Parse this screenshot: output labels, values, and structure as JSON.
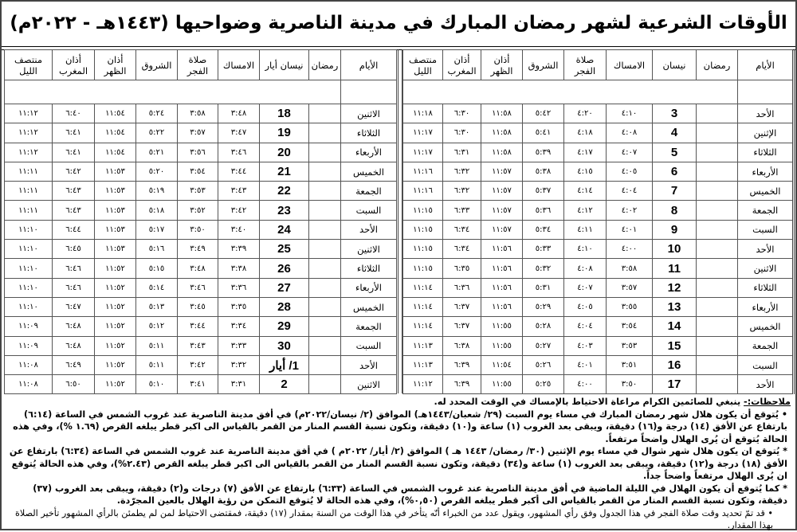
{
  "title": "الأوقات الشرعية لشهر رمضان المبارك في مدينة الناصرية وضواحيها (١٤٤٣هـ - ٢٠٢٢م)",
  "right_table": {
    "headers": [
      "الأيام",
      "رمضان",
      "نيسان",
      "الامساك",
      "صلاة الفجر",
      "الشروق",
      "أذان الظهر",
      "أذان المغرب",
      "منتصف الليل"
    ],
    "rows": [
      [
        "الأحد",
        "",
        "3",
        "٤:١٠",
        "٤:٢٠",
        "٥:٤٢",
        "١١:٥٨",
        "٦:٣٠",
        "١١:١٨"
      ],
      [
        "الإثنين",
        "",
        "4",
        "٤:٠٨",
        "٤:١٨",
        "٥:٤١",
        "١١:٥٨",
        "٦:٣٠",
        "١١:١٧"
      ],
      [
        "الثلاثاء",
        "",
        "5",
        "٤:٠٧",
        "٤:١٧",
        "٥:٣٩",
        "١١:٥٨",
        "٦:٣١",
        "١١:١٧"
      ],
      [
        "الأربعاء",
        "",
        "6",
        "٤:٠٥",
        "٤:١٥",
        "٥:٣٨",
        "١١:٥٧",
        "٦:٣٢",
        "١١:١٦"
      ],
      [
        "الخميس",
        "",
        "7",
        "٤:٠٤",
        "٤:١٤",
        "٥:٣٧",
        "١١:٥٧",
        "٦:٣٢",
        "١١:١٦"
      ],
      [
        "الجمعة",
        "",
        "8",
        "٤:٠٢",
        "٤:١٢",
        "٥:٣٦",
        "١١:٥٧",
        "٦:٣٣",
        "١١:١٥"
      ],
      [
        "السبت",
        "",
        "9",
        "٤:٠١",
        "٤:١١",
        "٥:٣٤",
        "١١:٥٧",
        "٦:٣٤",
        "١١:١٥"
      ],
      [
        "الأحد",
        "",
        "10",
        "٤:٠٠",
        "٤:١٠",
        "٥:٣٣",
        "١١:٥٦",
        "٦:٣٤",
        "١١:١٥"
      ],
      [
        "الاثنين",
        "",
        "11",
        "٣:٥٨",
        "٤:٠٨",
        "٥:٣٢",
        "١١:٥٦",
        "٦:٣٥",
        "١١:١٥"
      ],
      [
        "الثلاثاء",
        "",
        "12",
        "٣:٥٧",
        "٤:٠٧",
        "٥:٣١",
        "١١:٥٦",
        "٦:٣٦",
        "١١:١٤"
      ],
      [
        "الأربعاء",
        "",
        "13",
        "٣:٥٥",
        "٤:٠٥",
        "٥:٢٩",
        "١١:٥٦",
        "٦:٣٧",
        "١١:١٤"
      ],
      [
        "الخميس",
        "",
        "14",
        "٣:٥٤",
        "٤:٠٤",
        "٥:٢٨",
        "١١:٥٥",
        "٦:٣٧",
        "١١:١٤"
      ],
      [
        "الجمعة",
        "",
        "15",
        "٣:٥٣",
        "٤:٠٣",
        "٥:٢٧",
        "١١:٥٥",
        "٦:٣٨",
        "١١:١٣"
      ],
      [
        "السبت",
        "",
        "16",
        "٣:٥١",
        "٤:٠١",
        "٥:٢٦",
        "١١:٥٤",
        "٦:٣٩",
        "١١:١٣"
      ],
      [
        "الأحد",
        "",
        "17",
        "٣:٥٠",
        "٤:٠٠",
        "٥:٢٥",
        "١١:٥٥",
        "٦:٣٩",
        "١١:١٢"
      ]
    ]
  },
  "left_table": {
    "headers": [
      "الأيام",
      "رمضان",
      "نيسان أيار",
      "الامساك",
      "صلاة الفجر",
      "الشروق",
      "أذان الظهر",
      "أذان المغرب",
      "منتصف الليل"
    ],
    "rows": [
      [
        "الاثنين",
        "",
        "18",
        "٣:٤٨",
        "٣:٥٨",
        "٥:٢٤",
        "١١:٥٤",
        "٦:٤٠",
        "١١:١٢"
      ],
      [
        "الثلاثاء",
        "",
        "19",
        "٣:٤٧",
        "٣:٥٧",
        "٥:٢٢",
        "١١:٥٤",
        "٦:٤١",
        "١١:١٢"
      ],
      [
        "الأربعاء",
        "",
        "20",
        "٣:٤٦",
        "٣:٥٦",
        "٥:٢١",
        "١١:٥٤",
        "٦:٤١",
        "١١:١٢"
      ],
      [
        "الخميس",
        "",
        "21",
        "٣:٤٤",
        "٣:٥٤",
        "٥:٢٠",
        "١١:٥٣",
        "٦:٤٢",
        "١١:١١"
      ],
      [
        "الجمعة",
        "",
        "22",
        "٣:٤٣",
        "٣:٥٣",
        "٥:١٩",
        "١١:٥٣",
        "٦:٤٣",
        "١١:١١"
      ],
      [
        "السبت",
        "",
        "23",
        "٣:٤٢",
        "٣:٥٢",
        "٥:١٨",
        "١١:٥٣",
        "٦:٤٣",
        "١١:١١"
      ],
      [
        "الأحد",
        "",
        "24",
        "٣:٤٠",
        "٣:٥٠",
        "٥:١٧",
        "١١:٥٣",
        "٦:٤٤",
        "١١:١٠"
      ],
      [
        "الاثنين",
        "",
        "25",
        "٣:٣٩",
        "٣:٤٩",
        "٥:١٦",
        "١١:٥٣",
        "٦:٤٥",
        "١١:١٠"
      ],
      [
        "الثلاثاء",
        "",
        "26",
        "٣:٣٨",
        "٣:٤٨",
        "٥:١٥",
        "١١:٥٢",
        "٦:٤٦",
        "١١:١٠"
      ],
      [
        "الأربعاء",
        "",
        "27",
        "٣:٣٦",
        "٣:٤٦",
        "٥:١٤",
        "١١:٥٢",
        "٦:٤٦",
        "١١:١٠"
      ],
      [
        "الخميس",
        "",
        "28",
        "٣:٣٥",
        "٣:٤٥",
        "٥:١٣",
        "١١:٥٢",
        "٦:٤٧",
        "١١:١٠"
      ],
      [
        "الجمعة",
        "",
        "29",
        "٣:٣٤",
        "٣:٤٤",
        "٥:١٢",
        "١١:٥٢",
        "٦:٤٨",
        "١١:٠٩"
      ],
      [
        "السبت",
        "",
        "30",
        "٣:٣٣",
        "٣:٤٣",
        "٥:١١",
        "١١:٥٢",
        "٦:٤٨",
        "١١:٠٩"
      ],
      [
        "الأحد",
        "",
        "1/ أيار",
        "٣:٣٢",
        "٣:٤٢",
        "٥:١١",
        "١١:٥٢",
        "٦:٤٩",
        "١١:٠٨"
      ],
      [
        "الاثنين",
        "",
        "2",
        "٣:٣١",
        "٣:٤١",
        "٥:١٠",
        "١١:٥٢",
        "٦:٥٠",
        "١١:٠٨"
      ]
    ]
  },
  "notes": {
    "label": "ملاحظات:-",
    "intro": " ينبغي للصائمين الكرام مراعاة الاحتياط بالإمساك في الوقت المحدد له.",
    "items": [
      "• يُتوقع أن يكون هلال شهر رمضان المبارك في مساء يوم السبت (٢٩/ شعبان/١٤٤٣هـ) الموافق (٢/ نيسان/٢٠٢٢م) في أفق مدينة الناصرية عند غروب الشمس في الساعة (٦:١٤) بارتفاع عن الأفق (١٤) درجة و(١٦) دقيقة، ويبقى بعد الغروب (١) ساعة و(١٠) دقيقة، وتكون نسبة القسم المنار من القمر بالقياس الى اكبر قطر يبلغه القرص (١.٦٩ %)، وفي هذه الحالة يُتوقع أن يُرى الهلال واضحاً مرتفعاً.",
      "* يُتوقع ان يكون هلال شهر شوال في مساء يوم الإثنين (٣٠/ رمضان/ ١٤٤٣ هـ ) الموافق (٢/ أيار/ ٢٠٢٢م ) في أفق مدينة الناصرية عند غروب الشمس في الساعة (٦:٣٤) بارتفاع عن الأفق (١٨) درجة و(١٢) دقيقة، ويبقى بعد الغروب (١) ساعة و(٣٤) دقيقة، وتكون نسبة القسم المنار من القمر بالقياس الى اكبر قطر يبلغه القرص (٢.٤٣%)، وفي هذه الحالة يُتوقع ان يُرى الهلال مرتفعاً واضحاً جداً.",
      "* كما يُتوقع أن يكون الهلال في الليلة الماضية في أفق مدينة الناصرية عند غروب الشمس في الساعة (٦:٣٣) بارتفاع عن الأفق (٧) درجات و(٢) دقيقة، ويبقى بعد الغروب (٣٧) دقيقة، وتكون نسبة القسم المنار من القمر بالقياس الى أكبر قطر يبلغه القرص (٠,٥٠%)، وفي هذه الحالة لا يُتوقع التمكن من رؤية الهلال بالعين المجرّدة."
    ],
    "last": "•   قد تمّ تحديد وقت صلاة الفجر في هذا الجدول وفق رأي المشهور، ويقول عدد من الخبراء أنّه يتأخر في هذا الوقت من السنة بمقدار (١٧) دقيقة، فمقتضى الاحتياط لمن لم يطمئن بالرأي المشهور تأخير الصلاة بهذا المقدار."
  }
}
